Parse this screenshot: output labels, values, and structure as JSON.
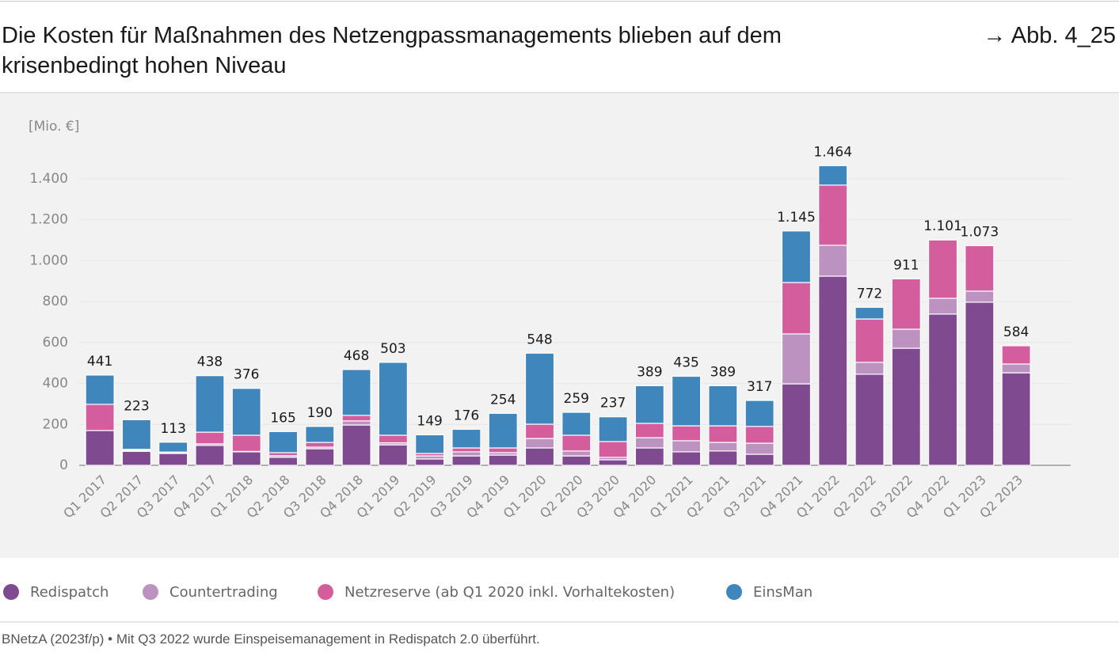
{
  "header": {
    "reference": "→ Abb. 4_25"
  },
  "source": "BNetzA (2023f/p) • Mit Q3 2022 wurde Einspeisemanagement in Redispatch 2.0 überführt.",
  "chart_data": {
    "type": "stacked_bar",
    "title": "Die Kosten für Maßnahmen des Netzengpassmanagements blieben auf dem krisenbedingt hohen Niveau",
    "ylabel": "[Mio. €]",
    "categories": [
      "Q1 2017",
      "Q2 2017",
      "Q3 2017",
      "Q4 2017",
      "Q1 2018",
      "Q2 2018",
      "Q3 2018",
      "Q4 2018",
      "Q1 2019",
      "Q2 2019",
      "Q3 2019",
      "Q4 2019",
      "Q1 2020",
      "Q2 2020",
      "Q3 2020",
      "Q4 2020",
      "Q1 2021",
      "Q2 2021",
      "Q3 2021",
      "Q4 2021",
      "Q1 2022",
      "Q2 2022",
      "Q3 2022",
      "Q4 2022",
      "Q1 2023",
      "Q2 2023"
    ],
    "series": [
      {
        "name": "Redispatch",
        "color": "#7f4a8f",
        "values": [
          170,
          68,
          58,
          97,
          66,
          39,
          81,
          197,
          100,
          31,
          46,
          50,
          85,
          46,
          27,
          85,
          66,
          70,
          54,
          398,
          924,
          445,
          572,
          739,
          797,
          452
        ]
      },
      {
        "name": "Countertrading",
        "color": "#bb92c0",
        "values": [
          0,
          5,
          2,
          8,
          2,
          8,
          8,
          20,
          10,
          15,
          20,
          12,
          46,
          24,
          12,
          50,
          54,
          42,
          54,
          244,
          151,
          58,
          93,
          77,
          54,
          43
        ]
      },
      {
        "name": "Netzreserve (ab Q1 2020 inkl. Vorhaltekosten)",
        "color": "#d45d9e",
        "values": [
          128,
          5,
          5,
          57,
          79,
          15,
          23,
          27,
          37,
          12,
          19,
          23,
          70,
          77,
          77,
          70,
          73,
          81,
          82,
          251,
          294,
          212,
          246,
          285,
          222,
          89
        ]
      },
      {
        "name": "EinsMan",
        "color": "#3e86bb",
        "values": [
          143,
          145,
          48,
          276,
          229,
          103,
          78,
          224,
          356,
          91,
          91,
          169,
          347,
          112,
          121,
          184,
          242,
          196,
          127,
          252,
          95,
          57,
          0,
          0,
          0,
          0
        ]
      }
    ],
    "totals": {
      "values": [
        441,
        223,
        113,
        438,
        376,
        165,
        190,
        468,
        503,
        149,
        176,
        254,
        548,
        259,
        237,
        389,
        435,
        389,
        317,
        1145,
        1464,
        772,
        911,
        1101,
        1073,
        584
      ],
      "value_labels": [
        "441",
        "223",
        "113",
        "438",
        "376",
        "165",
        "190",
        "468",
        "503",
        "149",
        "176",
        "254",
        "548",
        "259",
        "237",
        "389",
        "435",
        "389",
        "317",
        "1.145",
        "1.464",
        "772",
        "911",
        "1.101",
        "1.073",
        "584"
      ]
    },
    "ylim": [
      0,
      1500
    ],
    "yticks": [
      0,
      200,
      400,
      600,
      800,
      {
        "value": 1000,
        "label": "1.000"
      },
      {
        "value": 1200,
        "label": "1.200"
      },
      {
        "value": 1400,
        "label": "1.400"
      }
    ],
    "grid": true,
    "legend": "bottom"
  }
}
